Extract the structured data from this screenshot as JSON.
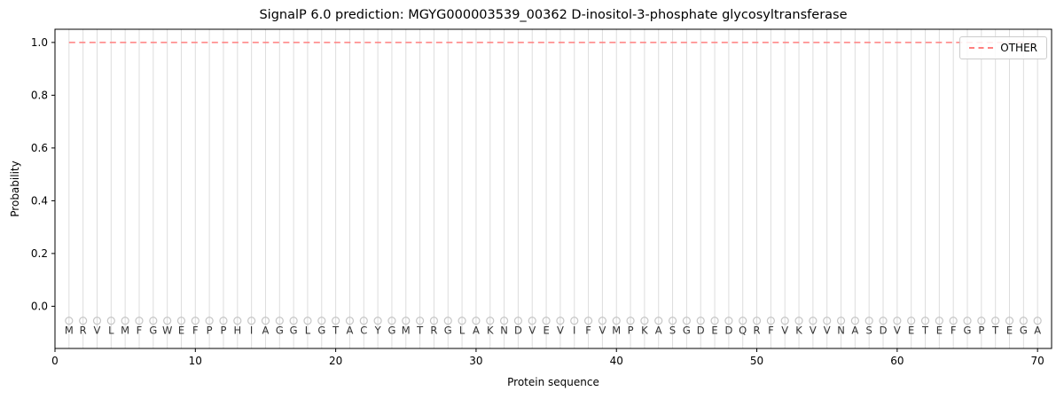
{
  "figure": {
    "background": "#ffffff"
  },
  "chart_data": {
    "type": "line",
    "title": "SignalP 6.0 prediction: MGYG000003539_00362 D-inositol-3-phosphate glycosyltransferase",
    "xlabel": "Protein sequence",
    "ylabel": "Probability",
    "xlim": [
      0,
      71
    ],
    "ylim": [
      -0.16,
      1.05
    ],
    "xticks": [
      0,
      10,
      20,
      30,
      40,
      50,
      60,
      70
    ],
    "yticks": [
      0.0,
      0.2,
      0.4,
      0.6,
      0.8,
      1.0
    ],
    "grid": {
      "vertical_per_residue": true,
      "color": "#dddddd"
    },
    "legend": {
      "position": "upper right",
      "entries": [
        {
          "label": "OTHER",
          "color": "#ff7f7f",
          "style": "dashed"
        }
      ]
    },
    "series": [
      {
        "name": "OTHER",
        "color": "#ff7f7f",
        "style": "dashed",
        "x": [
          1,
          70
        ],
        "y": [
          1.0,
          1.0
        ]
      }
    ],
    "sequence": "MRVLMFGWEFPPHIAGGLGTACYGMTRGLAKNDVEVIFVMPKASGDEDQRFVKVVNASDVETEFGPTEGA",
    "sequence_marker": {
      "shape": "circle",
      "y": -0.055,
      "color": "#c6c6c6"
    },
    "sequence_label_y": -0.105,
    "text_color": "#000000",
    "letter_color": "#333333"
  }
}
